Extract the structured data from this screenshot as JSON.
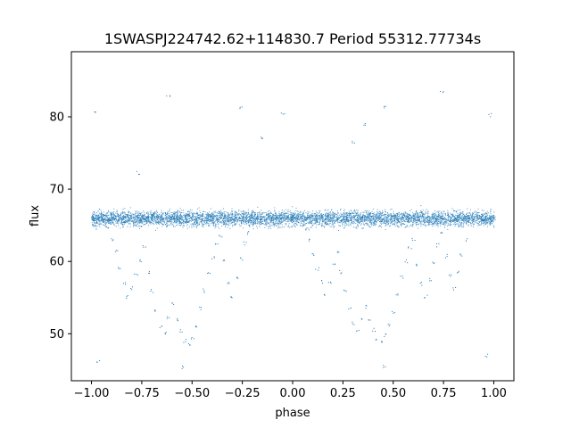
{
  "chart_data": {
    "type": "scatter",
    "title": "1SWASPJ224742.62+114830.7 Period 55312.77734s",
    "xlabel": "phase",
    "ylabel": "flux",
    "xlim": [
      -1.1,
      1.1
    ],
    "ylim": [
      43.5,
      89.0
    ],
    "x_ticks": [
      -1.0,
      -0.75,
      -0.5,
      -0.25,
      0.0,
      0.25,
      0.5,
      0.75,
      1.0
    ],
    "x_tick_labels": [
      "−1.00",
      "−0.75",
      "−0.50",
      "−0.25",
      "0.00",
      "0.25",
      "0.50",
      "0.75",
      "1.00"
    ],
    "y_ticks": [
      50,
      60,
      70,
      80
    ],
    "y_tick_labels": [
      "50",
      "60",
      "70",
      "80"
    ],
    "grid": false,
    "marker_color": "#1f77b4",
    "series": [
      {
        "description_values": "folded light curve sampled points (phase, flux)",
        "points": [
          [
            -1.0,
            66.0
          ],
          [
            -0.98,
            65.2
          ],
          [
            -0.96,
            67.1
          ],
          [
            -0.94,
            66.4
          ],
          [
            -0.92,
            64.8
          ],
          [
            -0.9,
            63.1
          ],
          [
            -0.88,
            61.5
          ],
          [
            -0.86,
            59.2
          ],
          [
            -0.84,
            57.0
          ],
          [
            -0.82,
            55.1
          ],
          [
            -0.8,
            56.3
          ],
          [
            -0.78,
            58.4
          ],
          [
            -0.76,
            60.2
          ],
          [
            -0.74,
            62.0
          ],
          [
            -0.72,
            58.5
          ],
          [
            -0.7,
            56.0
          ],
          [
            -0.68,
            53.2
          ],
          [
            -0.66,
            51.0
          ],
          [
            -0.64,
            50.2
          ],
          [
            -0.62,
            52.4
          ],
          [
            -0.6,
            54.1
          ],
          [
            -0.58,
            52.0
          ],
          [
            -0.56,
            50.5
          ],
          [
            -0.54,
            49.1
          ],
          [
            -0.52,
            48.6
          ],
          [
            -0.5,
            49.5
          ],
          [
            -0.48,
            51.0
          ],
          [
            -0.46,
            53.6
          ],
          [
            -0.44,
            56.0
          ],
          [
            -0.42,
            58.3
          ],
          [
            -0.4,
            60.5
          ],
          [
            -0.38,
            62.3
          ],
          [
            -0.36,
            63.5
          ],
          [
            -0.34,
            60.0
          ],
          [
            -0.32,
            57.2
          ],
          [
            -0.3,
            55.0
          ],
          [
            -0.28,
            57.8
          ],
          [
            -0.26,
            60.4
          ],
          [
            -0.24,
            62.6
          ],
          [
            -0.22,
            64.0
          ],
          [
            0.0,
            66.0
          ],
          [
            0.02,
            65.5
          ],
          [
            0.04,
            66.6
          ],
          [
            0.06,
            64.5
          ],
          [
            0.08,
            63.0
          ],
          [
            0.1,
            61.0
          ],
          [
            0.12,
            59.0
          ],
          [
            0.14,
            57.2
          ],
          [
            0.16,
            55.5
          ],
          [
            0.18,
            57.0
          ],
          [
            0.2,
            59.5
          ],
          [
            0.22,
            61.2
          ],
          [
            0.24,
            58.6
          ],
          [
            0.26,
            56.1
          ],
          [
            0.28,
            53.5
          ],
          [
            0.3,
            51.5
          ],
          [
            0.32,
            50.3
          ],
          [
            0.34,
            52.1
          ],
          [
            0.36,
            53.8
          ],
          [
            0.38,
            51.9
          ],
          [
            0.4,
            50.6
          ],
          [
            0.42,
            49.3
          ],
          [
            0.44,
            48.9
          ],
          [
            0.46,
            49.8
          ],
          [
            0.48,
            51.2
          ],
          [
            0.5,
            53.0
          ],
          [
            0.52,
            55.6
          ],
          [
            0.54,
            57.9
          ],
          [
            0.56,
            60.1
          ],
          [
            0.58,
            62.0
          ],
          [
            0.6,
            63.2
          ],
          [
            0.62,
            59.5
          ],
          [
            0.64,
            57.0
          ],
          [
            0.66,
            55.2
          ],
          [
            0.68,
            57.6
          ],
          [
            0.7,
            60.0
          ],
          [
            0.72,
            62.3
          ],
          [
            0.74,
            64.1
          ],
          [
            0.76,
            60.8
          ],
          [
            0.78,
            58.0
          ],
          [
            0.8,
            56.2
          ],
          [
            0.82,
            58.5
          ],
          [
            0.84,
            61.0
          ],
          [
            0.86,
            63.0
          ],
          [
            1.0,
            66.0
          ],
          [
            -0.99,
            80.5
          ],
          [
            -0.62,
            83.0
          ],
          [
            -0.26,
            81.2
          ],
          [
            -0.05,
            80.4
          ],
          [
            0.35,
            79.0
          ],
          [
            0.46,
            81.5
          ],
          [
            0.74,
            83.4
          ],
          [
            0.98,
            80.3
          ],
          [
            -0.77,
            72.3
          ],
          [
            0.3,
            76.5
          ],
          [
            -0.55,
            45.4
          ],
          [
            0.45,
            45.6
          ],
          [
            -0.97,
            46.1
          ],
          [
            0.96,
            47.0
          ],
          [
            -0.15,
            77.0
          ]
        ]
      }
    ],
    "band": {
      "center": 66.0,
      "spread": 2.2
    }
  }
}
